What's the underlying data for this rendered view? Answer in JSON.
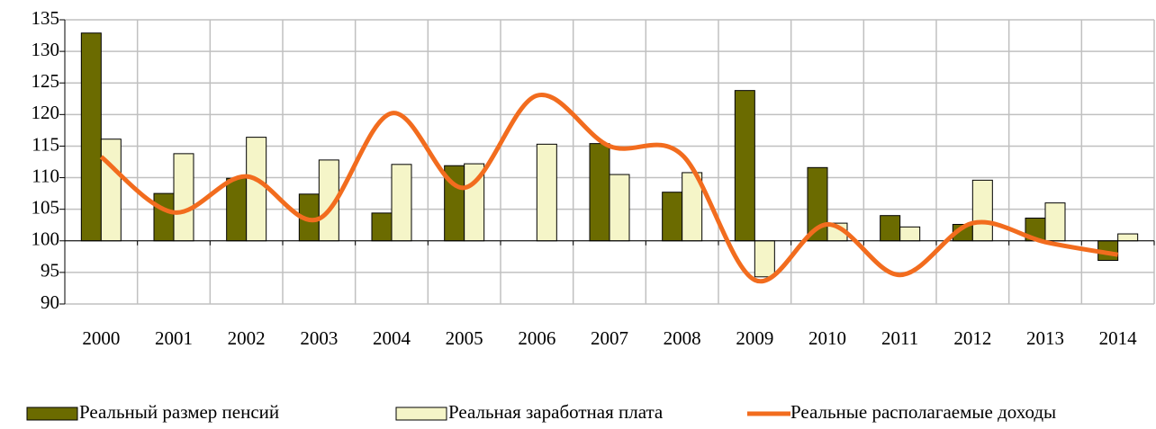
{
  "chart_data": {
    "type": "bar_line",
    "categories": [
      "2000",
      "2001",
      "2002",
      "2003",
      "2004",
      "2005",
      "2006",
      "2007",
      "2008",
      "2009",
      "2010",
      "2011",
      "2012",
      "2013",
      "2014"
    ],
    "series": [
      {
        "name": "Реальный размер пенсий",
        "type": "bar",
        "color": "#6b6b00",
        "values": [
          132.9,
          107.5,
          109.9,
          107.4,
          104.4,
          111.9,
          null,
          115.4,
          107.7,
          123.8,
          111.6,
          104.0,
          102.6,
          103.6,
          96.9
        ]
      },
      {
        "name": "Реальная заработная плата",
        "type": "bar",
        "color": "#f5f5c8",
        "values": [
          116.1,
          113.8,
          116.4,
          112.8,
          112.1,
          112.2,
          115.3,
          110.5,
          110.8,
          94.3,
          102.8,
          102.2,
          109.6,
          106.0,
          101.1
        ]
      },
      {
        "name": "Реальные располагаемые доходы",
        "type": "line",
        "color": "#f26c1e",
        "smooth": true,
        "values": [
          113.3,
          104.5,
          110.2,
          103.5,
          120.2,
          108.4,
          123.0,
          115.0,
          113.6,
          93.8,
          102.6,
          94.6,
          102.8,
          99.8,
          97.8
        ]
      }
    ],
    "ylim": [
      90,
      135
    ],
    "yticks": [
      90,
      95,
      100,
      105,
      110,
      115,
      120,
      125,
      130,
      135
    ],
    "x_axis_crosses": 100,
    "grid": true,
    "legend": "bottom"
  }
}
